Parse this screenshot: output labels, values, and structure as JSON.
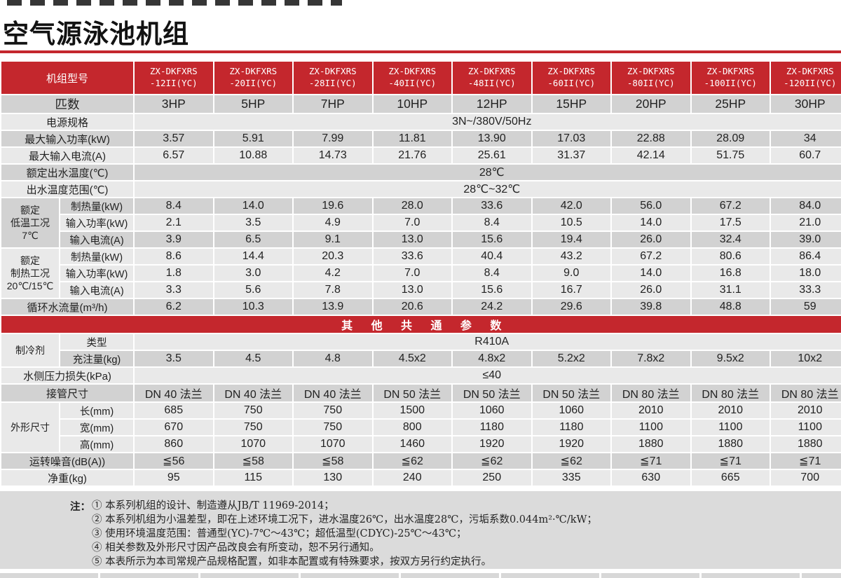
{
  "page": {
    "title": "空气源泳池机组",
    "accent_color": "#C4272D",
    "row_dark_color": "#D2D2D2",
    "row_light_color": "#E9E9E9"
  },
  "table": {
    "rows": [
      {
        "kind": "models",
        "label": "机组型号",
        "models": [
          [
            "ZX-DKFXRS",
            "-12II(YC)"
          ],
          [
            "ZX-DKFXRS",
            "-20II(YC)"
          ],
          [
            "ZX-DKFXRS",
            "-28II(YC)"
          ],
          [
            "ZX-DKFXRS",
            "-40II(YC)"
          ],
          [
            "ZX-DKFXRS",
            "-48II(YC)"
          ],
          [
            "ZX-DKFXRS",
            "-60II(YC)"
          ],
          [
            "ZX-DKFXRS",
            "-80II(YC)"
          ],
          [
            "ZX-DKFXRS",
            "-100II(YC)"
          ],
          [
            "ZX-DKFXRS",
            "-120II(YC)"
          ]
        ]
      },
      {
        "kind": "simple",
        "cls": "r-hp",
        "shade": "d",
        "label": "匹数",
        "values": [
          "3HP",
          "5HP",
          "7HP",
          "10HP",
          "12HP",
          "15HP",
          "20HP",
          "25HP",
          "30HP"
        ]
      },
      {
        "kind": "span",
        "shade": "l",
        "label": "电源规格",
        "value": "3N~/380V/50Hz"
      },
      {
        "kind": "simple",
        "shade": "d",
        "label": "最大输入功率(kW)",
        "values": [
          "3.57",
          "5.91",
          "7.99",
          "11.81",
          "13.90",
          "17.03",
          "22.88",
          "28.09",
          "34"
        ]
      },
      {
        "kind": "simple",
        "shade": "l",
        "label": "最大输入电流(A)",
        "values": [
          "6.57",
          "10.88",
          "14.73",
          "21.76",
          "25.61",
          "31.37",
          "42.14",
          "51.75",
          "60.7"
        ]
      },
      {
        "kind": "span",
        "shade": "d",
        "label": "额定出水温度(℃)",
        "value": "28℃"
      },
      {
        "kind": "span",
        "shade": "l",
        "label": "出水温度范围(℃)",
        "value": "28℃~32℃"
      },
      {
        "kind": "sub",
        "shade": "d",
        "group": {
          "lines": [
            "额定",
            "低温工况",
            "7℃"
          ],
          "span": 3,
          "shade": "d"
        },
        "label": "制热量(kW)",
        "values": [
          "8.4",
          "14.0",
          "19.6",
          "28.0",
          "33.6",
          "42.0",
          "56.0",
          "67.2",
          "84.0"
        ]
      },
      {
        "kind": "sub",
        "shade": "l",
        "label": "输入功率(kW)",
        "values": [
          "2.1",
          "3.5",
          "4.9",
          "7.0",
          "8.4",
          "10.5",
          "14.0",
          "17.5",
          "21.0"
        ]
      },
      {
        "kind": "sub",
        "shade": "d",
        "label": "输入电流(A)",
        "values": [
          "3.9",
          "6.5",
          "9.1",
          "13.0",
          "15.6",
          "19.4",
          "26.0",
          "32.4",
          "39.0"
        ]
      },
      {
        "kind": "sub",
        "shade": "l",
        "group": {
          "lines": [
            "额定",
            "制热工况",
            "20℃/15℃"
          ],
          "span": 3,
          "shade": "l"
        },
        "label": "制热量(kW)",
        "values": [
          "8.6",
          "14.4",
          "20.3",
          "33.6",
          "40.4",
          "43.2",
          "67.2",
          "80.6",
          "86.4"
        ]
      },
      {
        "kind": "sub",
        "shade": "l",
        "label": "输入功率(kW)",
        "values": [
          "1.8",
          "3.0",
          "4.2",
          "7.0",
          "8.4",
          "9.0",
          "14.0",
          "16.8",
          "18.0"
        ]
      },
      {
        "kind": "sub",
        "shade": "l",
        "label": "输入电流(A)",
        "values": [
          "3.3",
          "5.6",
          "7.8",
          "13.0",
          "15.6",
          "16.7",
          "26.0",
          "31.1",
          "33.3"
        ]
      },
      {
        "kind": "simple",
        "shade": "d",
        "label": "循环水流量(m³/h)",
        "values": [
          "6.2",
          "10.3",
          "13.9",
          "20.6",
          "24.2",
          "29.6",
          "39.8",
          "48.8",
          "59"
        ]
      },
      {
        "kind": "banner",
        "label": "其 他 共 通 参 数"
      },
      {
        "kind": "subspan",
        "shade": "l",
        "group": {
          "lines": [
            "制冷剂"
          ],
          "span": 2,
          "shade": "l"
        },
        "label": "类型",
        "value": "R410A"
      },
      {
        "kind": "sub",
        "shade": "d",
        "label": "充注量(kg)",
        "values": [
          "3.5",
          "4.5",
          "4.8",
          "4.5x2",
          "4.8x2",
          "5.2x2",
          "7.8x2",
          "9.5x2",
          "10x2"
        ]
      },
      {
        "kind": "span",
        "shade": "l",
        "label": "水侧压力损失(kPa)",
        "value": "≤40"
      },
      {
        "kind": "simple",
        "shade": "d",
        "label": "接管尺寸",
        "values": [
          "DN 40 法兰",
          "DN 40 法兰",
          "DN 40 法兰",
          "DN 50 法兰",
          "DN 50 法兰",
          "DN 50 法兰",
          "DN 80 法兰",
          "DN 80 法兰",
          "DN 80 法兰"
        ]
      },
      {
        "kind": "sub",
        "shade": "l",
        "group": {
          "lines": [
            "外形尺寸"
          ],
          "span": 3,
          "shade": "l"
        },
        "label": "长(mm)",
        "values": [
          "685",
          "750",
          "750",
          "1500",
          "1060",
          "1060",
          "2010",
          "2010",
          "2010"
        ]
      },
      {
        "kind": "sub",
        "shade": "l",
        "label": "宽(mm)",
        "values": [
          "670",
          "750",
          "750",
          "800",
          "1180",
          "1180",
          "1100",
          "1100",
          "1100"
        ]
      },
      {
        "kind": "sub",
        "shade": "l",
        "label": "高(mm)",
        "values": [
          "860",
          "1070",
          "1070",
          "1460",
          "1920",
          "1920",
          "1880",
          "1880",
          "1880"
        ]
      },
      {
        "kind": "simple",
        "shade": "d",
        "label": "运转噪音(dB(A))",
        "values": [
          "≦56",
          "≦58",
          "≦58",
          "≦62",
          "≦62",
          "≦62",
          "≦71",
          "≦71",
          "≦71"
        ]
      },
      {
        "kind": "simple",
        "shade": "l",
        "label": "净重(kg)",
        "values": [
          "95",
          "115",
          "130",
          "240",
          "250",
          "335",
          "630",
          "665",
          "700"
        ]
      }
    ]
  },
  "notes": {
    "prefix": "注：",
    "items": [
      "① 本系列机组的设计、制造遵从JB/T 11969-2014；",
      "② 本系列机组为小温差型，即在上述环境工况下，进水温度26℃，出水温度28℃，污垢系数0.044m²·℃/kW；",
      "③ 使用环境温度范围：普通型(YC)-7℃～43℃；超低温型(CDYC)-25℃～43℃；",
      "④ 相关参数及外形尺寸因产品改良会有所变动，恕不另行通知。",
      "⑤ 本表所示为本司常规产品规格配置，如非本配置或有特殊要求，按双方另行约定执行。"
    ]
  }
}
